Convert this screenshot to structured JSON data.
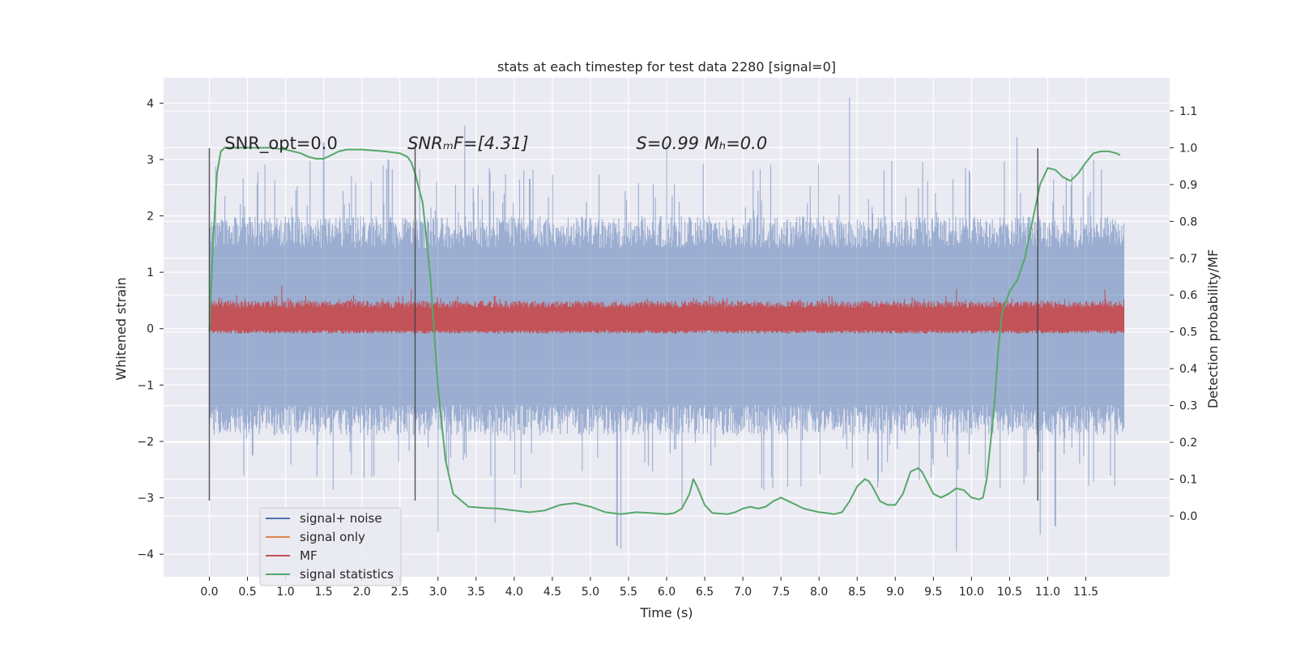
{
  "chart_data": {
    "type": "line",
    "title": "stats at each timestep for test data 2280 [signal=0]",
    "xlabel": "Time (s)",
    "ylabel": "Whitened strain",
    "y2label": "Detection probability/MF",
    "xlim": [
      -0.6,
      12.6
    ],
    "ylim": [
      -4.4,
      4.45
    ],
    "y2lim": [
      -0.165,
      1.19
    ],
    "xticks": [
      0.0,
      0.5,
      1.0,
      1.5,
      2.0,
      2.5,
      3.0,
      3.5,
      4.0,
      4.5,
      5.0,
      5.5,
      6.0,
      6.5,
      7.0,
      7.5,
      8.0,
      8.5,
      9.0,
      9.5,
      10.0,
      10.5,
      11.0,
      11.5
    ],
    "xtick_labels": [
      "0.0",
      "0.5",
      "1.0",
      "1.5",
      "2.0",
      "2.5",
      "3.0",
      "3.5",
      "4.0",
      "4.5",
      "5.0",
      "5.5",
      "6.0",
      "6.5",
      "7.0",
      "7.5",
      "8.0",
      "8.5",
      "9.0",
      "9.5",
      "10.0",
      "10.5",
      "11.0",
      "11.5"
    ],
    "yticks": [
      4,
      3,
      2,
      1,
      0,
      -1,
      -2,
      -3,
      -4
    ],
    "ytick_labels": [
      "4",
      "3",
      "2",
      "1",
      "0",
      "−1",
      "−2",
      "−3",
      "−4"
    ],
    "y2ticks": [
      1.1,
      1.0,
      0.9,
      0.8,
      0.7,
      0.6,
      0.5,
      0.4,
      0.3,
      0.2,
      0.1,
      0.0
    ],
    "y2tick_labels": [
      "1.1",
      "1.0",
      "0.9",
      "0.8",
      "0.7",
      "0.6",
      "0.5",
      "0.4",
      "0.3",
      "0.2",
      "0.1",
      "0.0"
    ],
    "grid": true,
    "legend_position": "lower-left",
    "annotations": [
      {
        "text": "SNR_opt=0.0",
        "x": 0.2
      },
      {
        "text": "SNRₘF=[4.31]",
        "x": 2.6
      },
      {
        "text": "S=0.99   Mₕ=0.0",
        "x": 5.6
      }
    ],
    "vlines": [
      {
        "x": 0.0,
        "ymin": -3.05,
        "ymax": 3.2
      },
      {
        "x": 2.7,
        "ymin": -3.05,
        "ymax": 3.2
      },
      {
        "x": 10.87,
        "ymin": -3.05,
        "ymax": 3.2
      }
    ],
    "series": [
      {
        "name": "signal+ noise",
        "color": "#4c72b0",
        "axis": "left",
        "kind": "noise",
        "x_range": [
          0.0,
          12.0
        ],
        "typical_range": [
          -1.8,
          1.9
        ],
        "peaks": [
          [
            1.5,
            3.3
          ],
          [
            2.35,
            3.0
          ],
          [
            3.35,
            3.6
          ],
          [
            6.0,
            3.3
          ],
          [
            8.4,
            4.1
          ],
          [
            10.6,
            3.4
          ],
          [
            11.6,
            3.0
          ]
        ],
        "troughs": [
          [
            3.0,
            -3.6
          ],
          [
            3.75,
            -3.45
          ],
          [
            5.35,
            -3.85
          ],
          [
            5.4,
            -3.9
          ],
          [
            6.2,
            -3.2
          ],
          [
            9.8,
            -3.95
          ],
          [
            10.9,
            -3.65
          ],
          [
            11.1,
            -3.5
          ]
        ]
      },
      {
        "name": "signal only",
        "color": "#dd8452",
        "axis": "left",
        "x": [
          0.0,
          12.0
        ],
        "y": [
          0.0,
          0.0
        ]
      },
      {
        "name": "MF",
        "color": "#c44e52",
        "axis": "right",
        "kind": "noise",
        "x_range": [
          0.0,
          12.0
        ],
        "typical_range": [
          0.5,
          0.57
        ],
        "peaks": [
          [
            0.95,
            0.625
          ],
          [
            2.65,
            0.615
          ],
          [
            9.8,
            0.615
          ],
          [
            11.75,
            0.615
          ]
        ]
      },
      {
        "name": "signal statistics",
        "color": "#55a868",
        "axis": "right",
        "x": [
          0.0,
          0.05,
          0.1,
          0.15,
          0.2,
          0.3,
          0.5,
          0.8,
          1.0,
          1.2,
          1.3,
          1.4,
          1.5,
          1.6,
          1.7,
          1.8,
          2.0,
          2.3,
          2.5,
          2.6,
          2.65,
          2.7,
          2.8,
          2.9,
          2.95,
          3.0,
          3.1,
          3.2,
          3.4,
          3.6,
          3.8,
          4.0,
          4.2,
          4.4,
          4.6,
          4.8,
          5.0,
          5.2,
          5.4,
          5.6,
          5.8,
          6.0,
          6.1,
          6.2,
          6.3,
          6.35,
          6.4,
          6.5,
          6.6,
          6.8,
          6.9,
          7.0,
          7.1,
          7.2,
          7.3,
          7.4,
          7.5,
          7.6,
          7.7,
          7.8,
          7.9,
          8.0,
          8.1,
          8.2,
          8.3,
          8.4,
          8.5,
          8.6,
          8.65,
          8.7,
          8.8,
          8.9,
          9.0,
          9.1,
          9.2,
          9.3,
          9.35,
          9.4,
          9.5,
          9.6,
          9.7,
          9.8,
          9.9,
          10.0,
          10.1,
          10.15,
          10.2,
          10.3,
          10.35,
          10.4,
          10.5,
          10.6,
          10.7,
          10.8,
          10.9,
          11.0,
          11.1,
          11.2,
          11.3,
          11.4,
          11.5,
          11.6,
          11.7,
          11.8,
          11.9,
          11.95
        ],
        "y": [
          0.5,
          0.75,
          0.93,
          0.99,
          1.0,
          1.0,
          1.0,
          1.0,
          0.995,
          0.985,
          0.975,
          0.97,
          0.97,
          0.98,
          0.99,
          0.995,
          0.995,
          0.99,
          0.985,
          0.975,
          0.96,
          0.93,
          0.85,
          0.65,
          0.5,
          0.35,
          0.15,
          0.06,
          0.025,
          0.022,
          0.02,
          0.015,
          0.01,
          0.015,
          0.03,
          0.035,
          0.025,
          0.01,
          0.005,
          0.01,
          0.008,
          0.005,
          0.008,
          0.02,
          0.06,
          0.1,
          0.08,
          0.03,
          0.008,
          0.005,
          0.01,
          0.02,
          0.025,
          0.02,
          0.025,
          0.04,
          0.05,
          0.04,
          0.03,
          0.02,
          0.015,
          0.01,
          0.008,
          0.005,
          0.01,
          0.04,
          0.08,
          0.1,
          0.095,
          0.08,
          0.04,
          0.03,
          0.03,
          0.06,
          0.12,
          0.13,
          0.12,
          0.1,
          0.06,
          0.05,
          0.06,
          0.075,
          0.07,
          0.05,
          0.045,
          0.05,
          0.1,
          0.3,
          0.45,
          0.55,
          0.61,
          0.64,
          0.7,
          0.8,
          0.9,
          0.945,
          0.94,
          0.92,
          0.91,
          0.93,
          0.96,
          0.985,
          0.99,
          0.99,
          0.985,
          0.98
        ]
      }
    ]
  }
}
